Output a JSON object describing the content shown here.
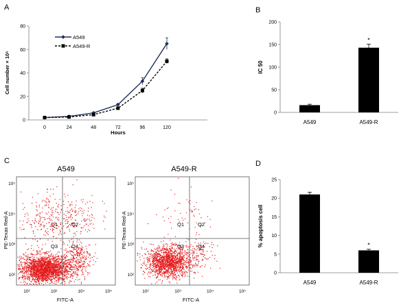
{
  "panel_labels": [
    "A",
    "B",
    "C",
    "D"
  ],
  "chart_data": [
    {
      "panel": "A",
      "type": "line",
      "xlabel": "Hours",
      "ylabel": "Cell number × 10⁵",
      "x": [
        0,
        24,
        48,
        72,
        96,
        120
      ],
      "x_ticks": [
        "0",
        "24",
        "48",
        "72",
        "96",
        "120"
      ],
      "y_ticks": [
        "0",
        "20",
        "40",
        "60",
        "80"
      ],
      "ylim": [
        0,
        80
      ],
      "legend_position": "top-left",
      "series": [
        {
          "name": "A549",
          "values": [
            2,
            3,
            6,
            13,
            33,
            65
          ],
          "errors": [
            0.3,
            0.4,
            0.6,
            1,
            3,
            5
          ],
          "line": "solid",
          "marker": "diamond",
          "color": "#1f2f5a"
        },
        {
          "name": "A549-R",
          "values": [
            2,
            2.5,
            4.5,
            10,
            25,
            50
          ],
          "errors": [
            0.3,
            0.3,
            0.5,
            0.8,
            2,
            2
          ],
          "line": "dashed",
          "marker": "square",
          "color": "#000000"
        }
      ]
    },
    {
      "panel": "B",
      "type": "bar",
      "ylabel": "IC 50",
      "categories": [
        "A549",
        "A549-R"
      ],
      "values": [
        16,
        143
      ],
      "errors": [
        2,
        8
      ],
      "annotations": [
        "",
        "*"
      ],
      "y_ticks": [
        "0",
        "50",
        "100",
        "150",
        "200"
      ],
      "ylim": [
        0,
        200
      ]
    },
    {
      "panel": "C",
      "type": "scatter",
      "plots": [
        {
          "title": "A549",
          "xlabel": "FITC-A",
          "ylabel": "PE-Texas Red-A",
          "quadrants": [
            "Q1",
            "Q2",
            "Q3",
            "Q4"
          ]
        },
        {
          "title": "A549-R",
          "xlabel": "FITC-A",
          "ylabel": "PE-Texas Red-A",
          "quadrants": [
            "Q1",
            "Q2",
            "Q3",
            "Q4"
          ]
        }
      ],
      "x_ticks": [
        "10²",
        "10³",
        "10⁴",
        "10⁵"
      ],
      "y_ticks": [
        "10²",
        "10³",
        "10⁴",
        "10⁵"
      ],
      "dot_color": "#e41a1c"
    },
    {
      "panel": "D",
      "type": "bar",
      "ylabel": "% apoptosis cell",
      "categories": [
        "A549",
        "A549-R"
      ],
      "values": [
        21,
        6
      ],
      "errors": [
        0.6,
        0.3
      ],
      "annotations": [
        "",
        "*"
      ],
      "y_ticks": [
        "0",
        "5",
        "10",
        "15",
        "20",
        "25"
      ],
      "ylim": [
        0,
        25
      ]
    }
  ]
}
